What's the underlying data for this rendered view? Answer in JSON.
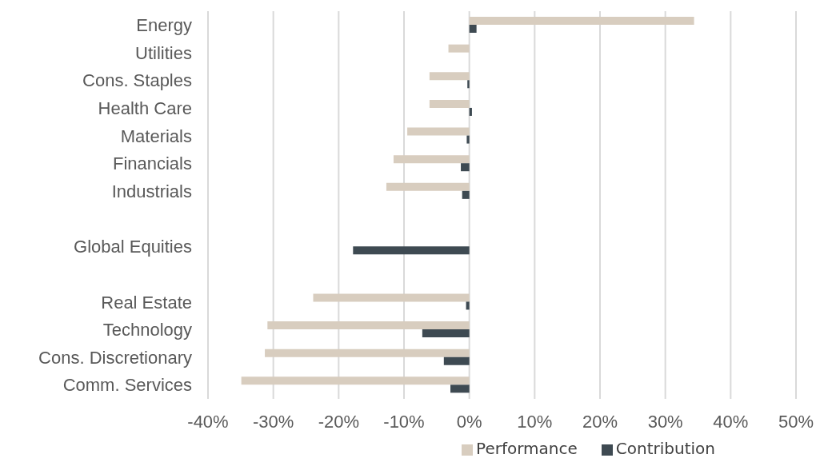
{
  "chart_data": {
    "type": "bar",
    "orientation": "horizontal",
    "categories": [
      "Energy",
      "Utilities",
      "Cons. Staples",
      "Health Care",
      "Materials",
      "Financials",
      "Industrials",
      null,
      "Global Equities",
      null,
      "Real Estate",
      "Technology",
      "Cons. Discretionary",
      "Comm. Services"
    ],
    "series": [
      {
        "name": "Performance",
        "color": "#d8cdbf",
        "values": [
          34.4,
          -3.2,
          -6.1,
          -6.1,
          -9.5,
          -11.6,
          -12.7,
          null,
          null,
          null,
          -23.9,
          -30.9,
          -31.3,
          -34.9
        ]
      },
      {
        "name": "Contribution",
        "color": "#3e4a52",
        "values": [
          1.1,
          null,
          -0.3,
          0.4,
          -0.4,
          -1.3,
          -1.1,
          null,
          -17.8,
          null,
          -0.5,
          -7.2,
          -3.9,
          -2.9
        ]
      }
    ],
    "xlim": [
      -40,
      50
    ],
    "xticks": [
      {
        "value": -40,
        "label": "-40%"
      },
      {
        "value": -30,
        "label": "-30%"
      },
      {
        "value": -20,
        "label": "-20%"
      },
      {
        "value": -10,
        "label": "-10%"
      },
      {
        "value": 0,
        "label": "0%"
      },
      {
        "value": 10,
        "label": "10%"
      },
      {
        "value": 20,
        "label": "20%"
      },
      {
        "value": 30,
        "label": "30%"
      },
      {
        "value": 40,
        "label": "40%"
      },
      {
        "value": 50,
        "label": "50%"
      }
    ],
    "grid": "x",
    "legend": "bottom"
  }
}
